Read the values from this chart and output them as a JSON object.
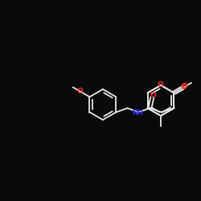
{
  "bg_color": "#0a0a0a",
  "bond_color": "#e8e8e8",
  "o_color": "#ff3333",
  "n_color": "#3333ff",
  "figsize": [
    2.5,
    2.5
  ],
  "dpi": 100,
  "xlim": [
    0,
    250
  ],
  "ylim": [
    0,
    250
  ]
}
